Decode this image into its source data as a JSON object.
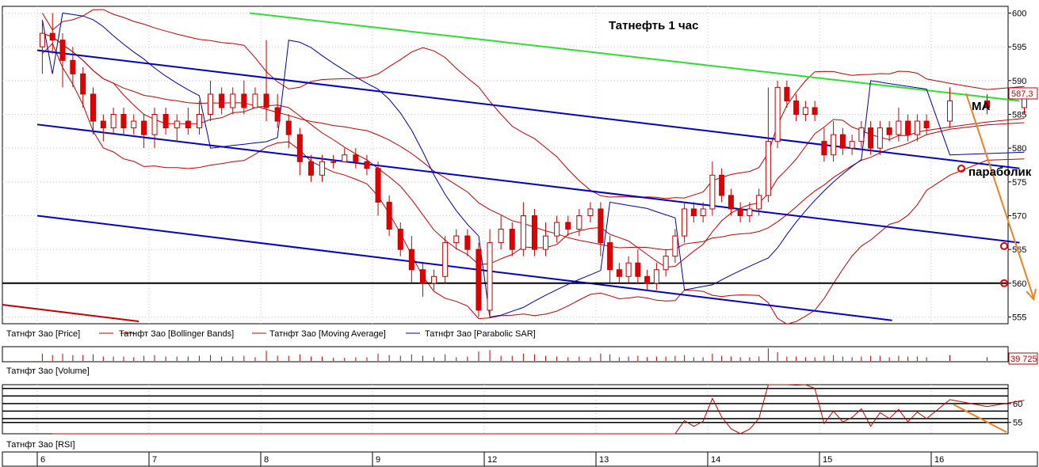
{
  "chart_data": {
    "type": "candlestick",
    "title": "Татнефть   1 час",
    "price_axis": {
      "ylim": [
        554,
        601
      ],
      "ticks": [
        555,
        560,
        565,
        570,
        575,
        580,
        585,
        590,
        595,
        600
      ]
    },
    "x_axis": {
      "day_labels": [
        "6",
        "7",
        "8",
        "9",
        "12",
        "13",
        "14",
        "15",
        "16"
      ]
    },
    "last_price_label": "587,3",
    "legend": [
      {
        "label": "Татнфт Зао [Price]",
        "color": "#c00000"
      },
      {
        "label": "Татнфт Зао [Bollinger Bands]",
        "color": "#c00000"
      },
      {
        "label": "Татнфт Зао [Moving Average]",
        "color": "#c00000"
      },
      {
        "label": "Татнфт Зао [Parabolic SAR]",
        "color": "#0000a0"
      }
    ],
    "annotations": {
      "ma": "MA",
      "parabolic": "параболик"
    },
    "volume_panel": {
      "label": "Татнфт Зао [Volume]",
      "last_value": "39 725"
    },
    "rsi_panel": {
      "label": "Татнфт Зао [RSI]",
      "ticks": [
        55,
        60
      ]
    },
    "horizontal_line": {
      "price": 560
    },
    "candles_by_day": [
      [
        [
          595,
          597,
          591,
          599
        ],
        [
          597,
          596,
          594,
          600
        ],
        [
          596,
          593,
          589,
          597
        ],
        [
          593,
          591,
          589,
          595
        ],
        [
          591,
          588,
          586,
          592
        ],
        [
          588,
          584,
          582,
          589
        ],
        [
          584,
          583,
          581,
          585
        ],
        [
          583,
          585,
          582,
          586
        ],
        [
          585,
          583,
          582,
          586
        ],
        [
          583,
          584,
          582,
          585
        ],
        [
          584,
          582,
          580,
          585
        ]
      ],
      [
        [
          582,
          585,
          580,
          586
        ],
        [
          585,
          583,
          582,
          586
        ],
        [
          583,
          584,
          581,
          585
        ],
        [
          584,
          583,
          582,
          586
        ],
        [
          583,
          585,
          582,
          587
        ],
        [
          585,
          588,
          584,
          590
        ],
        [
          588,
          586,
          585,
          589
        ],
        [
          586,
          588,
          585,
          589
        ],
        [
          588,
          586,
          585,
          590
        ],
        [
          586,
          588,
          586,
          589
        ]
      ],
      [
        [
          588,
          586,
          584,
          596
        ],
        [
          586,
          584,
          583,
          588
        ],
        [
          584,
          582,
          580,
          585
        ],
        [
          582,
          578,
          576,
          583
        ],
        [
          578,
          576,
          575,
          579
        ],
        [
          576,
          578,
          575,
          579
        ],
        [
          578,
          578,
          577,
          579
        ],
        [
          578,
          579,
          578,
          580
        ],
        [
          579,
          578,
          577,
          580
        ],
        [
          578,
          577,
          576,
          579
        ]
      ],
      [
        [
          577,
          572,
          570,
          578
        ],
        [
          572,
          568,
          567,
          573
        ],
        [
          568,
          565,
          564,
          569
        ],
        [
          565,
          562,
          560,
          567
        ],
        [
          562,
          560,
          558,
          563
        ],
        [
          560,
          561,
          559,
          562
        ],
        [
          561,
          566,
          560,
          567
        ],
        [
          566,
          567,
          565,
          568
        ],
        [
          567,
          565,
          564,
          568
        ],
        [
          565,
          556,
          555,
          566
        ]
      ],
      [
        [
          556,
          566,
          555,
          568
        ],
        [
          566,
          568,
          565,
          570
        ],
        [
          568,
          565,
          564,
          569
        ],
        [
          565,
          570,
          564,
          572
        ],
        [
          570,
          565,
          564,
          571
        ],
        [
          565,
          567,
          564,
          569
        ],
        [
          567,
          569,
          566,
          570
        ],
        [
          569,
          568,
          567,
          570
        ],
        [
          568,
          570,
          567,
          571
        ],
        [
          570,
          571,
          569,
          572
        ]
      ],
      [
        [
          571,
          566,
          564,
          572
        ],
        [
          566,
          562,
          560,
          567
        ],
        [
          562,
          561,
          560,
          563
        ],
        [
          561,
          563,
          560,
          564
        ],
        [
          563,
          561,
          560,
          565
        ],
        [
          561,
          560,
          559,
          562
        ],
        [
          560,
          562,
          559,
          563
        ],
        [
          562,
          564,
          561,
          565
        ],
        [
          564,
          567,
          563,
          568
        ],
        [
          567,
          571,
          566,
          572
        ],
        [
          571,
          570,
          569,
          572
        ],
        [
          570,
          571,
          569,
          572
        ]
      ],
      [
        [
          571,
          576,
          570,
          578
        ],
        [
          576,
          573,
          572,
          577
        ],
        [
          573,
          571,
          570,
          574
        ],
        [
          571,
          570,
          569,
          572
        ],
        [
          570,
          571,
          569,
          572
        ],
        [
          571,
          573,
          570,
          574
        ],
        [
          573,
          581,
          572,
          589
        ],
        [
          581,
          589,
          580,
          590
        ],
        [
          589,
          587,
          586,
          590
        ],
        [
          587,
          585,
          584,
          588
        ],
        [
          585,
          586,
          584,
          587
        ],
        [
          586,
          585,
          584,
          587
        ]
      ],
      [
        [
          581,
          579,
          578,
          583
        ],
        [
          579,
          582,
          578,
          584
        ],
        [
          582,
          580,
          579,
          583
        ],
        [
          580,
          581,
          579,
          582
        ],
        [
          581,
          583,
          580,
          584
        ],
        [
          583,
          580,
          579,
          584
        ],
        [
          580,
          583,
          579,
          584
        ],
        [
          583,
          582,
          581,
          584
        ],
        [
          582,
          584,
          581,
          586
        ],
        [
          584,
          582,
          581,
          585
        ],
        [
          582,
          584,
          581,
          585
        ],
        [
          584,
          583,
          582,
          585
        ]
      ],
      [
        [
          584,
          587,
          583,
          589
        ],
        [
          587,
          586,
          585,
          588
        ],
        [
          586,
          587.3,
          585,
          588
        ]
      ]
    ],
    "channel_lines": [
      {
        "name": "green",
        "color": "#33dd33",
        "p1": [
          1.9,
          600
        ],
        "p2": [
          8.79,
          587
        ]
      },
      {
        "name": "blue-1",
        "color": "#0000c0",
        "p1": [
          0,
          594.5
        ],
        "p2": [
          8.79,
          577
        ]
      },
      {
        "name": "blue-2",
        "color": "#0000c0",
        "p1": [
          0,
          583.5
        ],
        "p2": [
          8.79,
          566
        ]
      },
      {
        "name": "blue-3",
        "color": "#0000c0",
        "p1": [
          0,
          570
        ],
        "p2": [
          7.65,
          554.5
        ]
      }
    ]
  }
}
